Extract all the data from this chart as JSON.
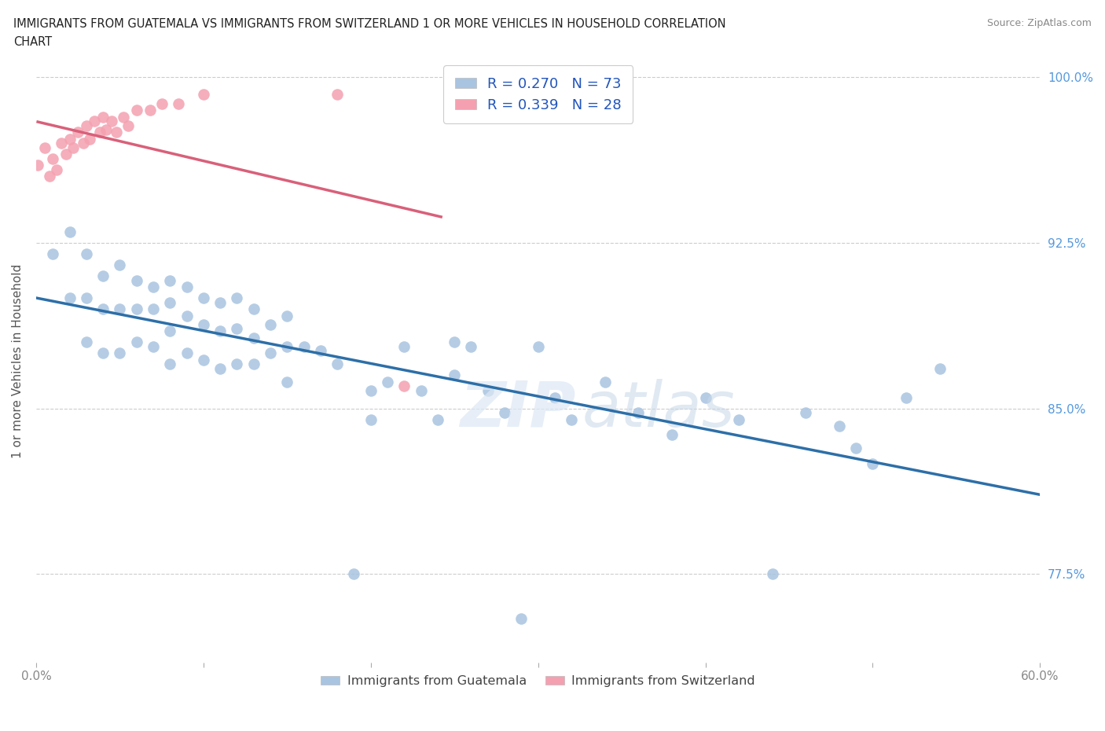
{
  "title_line1": "IMMIGRANTS FROM GUATEMALA VS IMMIGRANTS FROM SWITZERLAND 1 OR MORE VEHICLES IN HOUSEHOLD CORRELATION",
  "title_line2": "CHART",
  "source": "Source: ZipAtlas.com",
  "ylabel": "1 or more Vehicles in Household",
  "xlim": [
    0.0,
    0.6
  ],
  "ylim": [
    0.735,
    1.008
  ],
  "xticks": [
    0.0,
    0.1,
    0.2,
    0.3,
    0.4,
    0.5,
    0.6
  ],
  "xticklabels": [
    "0.0%",
    "",
    "",
    "",
    "",
    "",
    "60.0%"
  ],
  "yticks": [
    0.775,
    0.85,
    0.925,
    1.0
  ],
  "yticklabels": [
    "77.5%",
    "85.0%",
    "92.5%",
    "100.0%"
  ],
  "R_blue": 0.27,
  "N_blue": 73,
  "R_pink": 0.339,
  "N_pink": 28,
  "blue_color": "#a8c4e0",
  "pink_color": "#f4a0b0",
  "blue_line_color": "#2d6fa8",
  "pink_line_color": "#d9607a",
  "legend_label_blue": "Immigrants from Guatemala",
  "legend_label_pink": "Immigrants from Switzerland",
  "blue_x": [
    0.01,
    0.02,
    0.02,
    0.03,
    0.03,
    0.03,
    0.04,
    0.04,
    0.04,
    0.05,
    0.05,
    0.05,
    0.06,
    0.06,
    0.06,
    0.07,
    0.07,
    0.07,
    0.08,
    0.08,
    0.08,
    0.08,
    0.09,
    0.09,
    0.09,
    0.1,
    0.1,
    0.1,
    0.11,
    0.11,
    0.11,
    0.12,
    0.12,
    0.12,
    0.13,
    0.13,
    0.13,
    0.14,
    0.14,
    0.15,
    0.15,
    0.15,
    0.16,
    0.17,
    0.18,
    0.19,
    0.2,
    0.2,
    0.21,
    0.22,
    0.23,
    0.24,
    0.25,
    0.25,
    0.26,
    0.27,
    0.28,
    0.29,
    0.3,
    0.31,
    0.32,
    0.34,
    0.36,
    0.38,
    0.4,
    0.42,
    0.44,
    0.46,
    0.48,
    0.49,
    0.5,
    0.52,
    0.54
  ],
  "blue_y": [
    0.92,
    0.93,
    0.9,
    0.92,
    0.9,
    0.88,
    0.91,
    0.895,
    0.875,
    0.915,
    0.895,
    0.875,
    0.908,
    0.895,
    0.88,
    0.905,
    0.895,
    0.878,
    0.908,
    0.898,
    0.885,
    0.87,
    0.905,
    0.892,
    0.875,
    0.9,
    0.888,
    0.872,
    0.898,
    0.885,
    0.868,
    0.9,
    0.886,
    0.87,
    0.895,
    0.882,
    0.87,
    0.888,
    0.875,
    0.892,
    0.878,
    0.862,
    0.878,
    0.876,
    0.87,
    0.775,
    0.858,
    0.845,
    0.862,
    0.878,
    0.858,
    0.845,
    0.88,
    0.865,
    0.878,
    0.858,
    0.848,
    0.755,
    0.878,
    0.855,
    0.845,
    0.862,
    0.848,
    0.838,
    0.855,
    0.845,
    0.775,
    0.848,
    0.842,
    0.832,
    0.825,
    0.855,
    0.868
  ],
  "pink_x": [
    0.001,
    0.005,
    0.008,
    0.01,
    0.012,
    0.015,
    0.018,
    0.02,
    0.022,
    0.025,
    0.028,
    0.03,
    0.032,
    0.035,
    0.038,
    0.04,
    0.042,
    0.045,
    0.048,
    0.052,
    0.055,
    0.06,
    0.068,
    0.075,
    0.085,
    0.1,
    0.18,
    0.22
  ],
  "pink_y": [
    0.96,
    0.968,
    0.955,
    0.963,
    0.958,
    0.97,
    0.965,
    0.972,
    0.968,
    0.975,
    0.97,
    0.978,
    0.972,
    0.98,
    0.975,
    0.982,
    0.976,
    0.98,
    0.975,
    0.982,
    0.978,
    0.985,
    0.985,
    0.988,
    0.988,
    0.992,
    0.992,
    0.86
  ]
}
